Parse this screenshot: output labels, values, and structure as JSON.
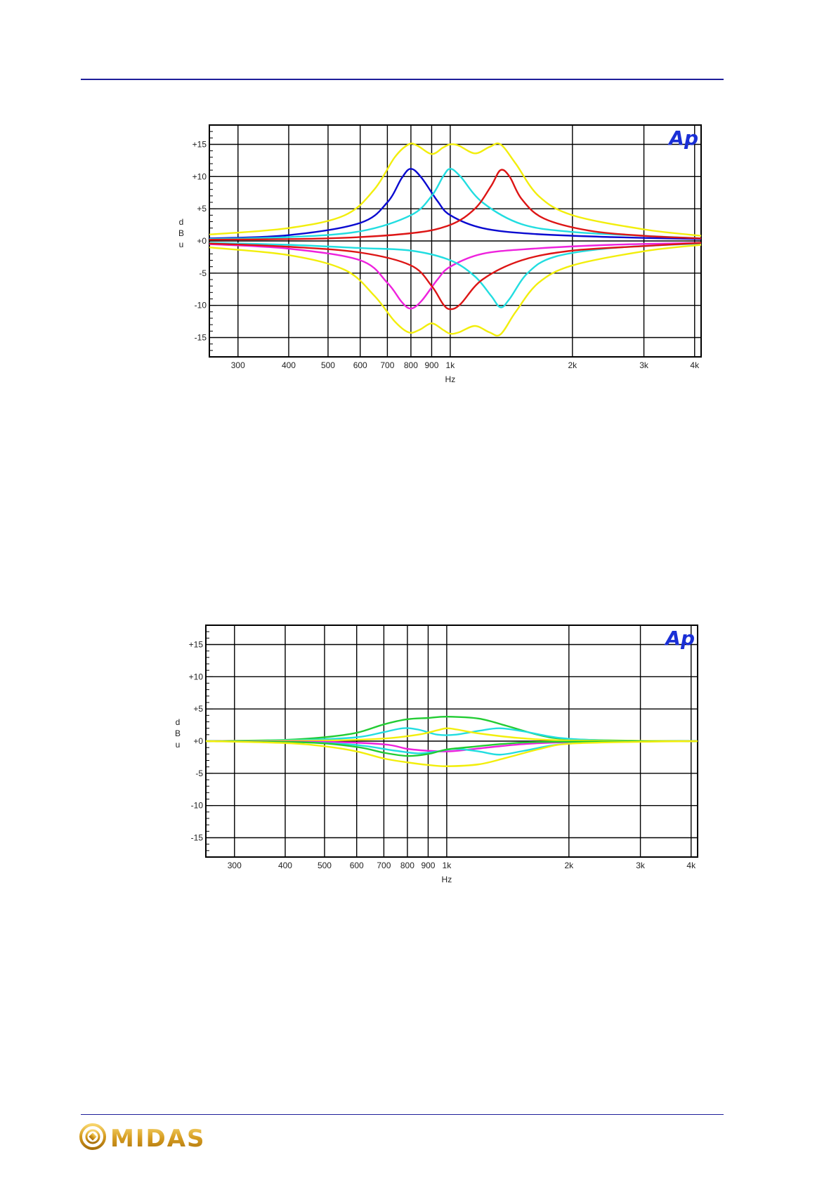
{
  "page": {
    "logo_text": "MIDAS"
  },
  "chart_data": [
    {
      "type": "line",
      "title": "",
      "xlabel": "Hz",
      "ylabel": "dBu",
      "x_scale": "log",
      "xlim": [
        255,
        4150
      ],
      "ylim": [
        -18,
        18
      ],
      "x_ticks": [
        {
          "value": 300,
          "label": "300"
        },
        {
          "value": 400,
          "label": "400"
        },
        {
          "value": 500,
          "label": "500"
        },
        {
          "value": 600,
          "label": "600"
        },
        {
          "value": 700,
          "label": "700"
        },
        {
          "value": 800,
          "label": "800"
        },
        {
          "value": 900,
          "label": "900"
        },
        {
          "value": 1000,
          "label": "1k"
        },
        {
          "value": 2000,
          "label": "2k"
        },
        {
          "value": 3000,
          "label": "3k"
        },
        {
          "value": 4000,
          "label": "4k"
        }
      ],
      "y_ticks": [
        {
          "value": 15,
          "label": "+15"
        },
        {
          "value": 10,
          "label": "+10"
        },
        {
          "value": 5,
          "label": "+5"
        },
        {
          "value": 0,
          "label": "+0"
        },
        {
          "value": -5,
          "label": "-5"
        },
        {
          "value": -10,
          "label": "-10"
        },
        {
          "value": -15,
          "label": "-15"
        }
      ],
      "grid": true,
      "badge": "Ap",
      "colors": {
        "badge": "#1a2fd6",
        "grid": "#000000"
      },
      "series": [
        {
          "color": "#0a0ad0",
          "points": [
            [
              255,
              0.4
            ],
            [
              400,
              0.9
            ],
            [
              600,
              2.8
            ],
            [
              700,
              6.0
            ],
            [
              760,
              9.8
            ],
            [
              800,
              11.2
            ],
            [
              850,
              9.8
            ],
            [
              930,
              6.2
            ],
            [
              1000,
              4.0
            ],
            [
              1200,
              2.0
            ],
            [
              1600,
              1.1
            ],
            [
              2500,
              0.6
            ],
            [
              4150,
              0.3
            ]
          ]
        },
        {
          "color": "#22dde0",
          "points": [
            [
              255,
              0.3
            ],
            [
              400,
              0.6
            ],
            [
              600,
              1.5
            ],
            [
              800,
              4.0
            ],
            [
              900,
              7.0
            ],
            [
              960,
              10.0
            ],
            [
              1000,
              11.2
            ],
            [
              1060,
              10.0
            ],
            [
              1200,
              6.0
            ],
            [
              1500,
              2.6
            ],
            [
              2000,
              1.4
            ],
            [
              3000,
              0.8
            ],
            [
              4150,
              0.4
            ]
          ]
        },
        {
          "color": "#dd1515",
          "points": [
            [
              255,
              0.2
            ],
            [
              500,
              0.4
            ],
            [
              800,
              1.2
            ],
            [
              1000,
              2.5
            ],
            [
              1150,
              5.0
            ],
            [
              1260,
              8.5
            ],
            [
              1330,
              11.0
            ],
            [
              1400,
              10.0
            ],
            [
              1500,
              6.5
            ],
            [
              1700,
              3.5
            ],
            [
              2200,
              1.6
            ],
            [
              3000,
              0.8
            ],
            [
              4150,
              0.4
            ]
          ]
        },
        {
          "color": "#f2ee0c",
          "points": [
            [
              255,
              1.0
            ],
            [
              400,
              2.0
            ],
            [
              550,
              4.0
            ],
            [
              650,
              8.0
            ],
            [
              730,
              13.0
            ],
            [
              790,
              15.0
            ],
            [
              830,
              14.8
            ],
            [
              900,
              13.5
            ],
            [
              960,
              14.5
            ],
            [
              1000,
              15.0
            ],
            [
              1050,
              14.8
            ],
            [
              1150,
              13.6
            ],
            [
              1250,
              14.6
            ],
            [
              1330,
              15.0
            ],
            [
              1450,
              12.0
            ],
            [
              1650,
              7.0
            ],
            [
              2000,
              4.0
            ],
            [
              3000,
              1.8
            ],
            [
              4150,
              0.8
            ]
          ]
        },
        {
          "color": "#ee22dd",
          "points": [
            [
              255,
              -0.5
            ],
            [
              400,
              -1.2
            ],
            [
              600,
              -3.0
            ],
            [
              700,
              -6.5
            ],
            [
              760,
              -9.5
            ],
            [
              800,
              -10.5
            ],
            [
              850,
              -9.3
            ],
            [
              930,
              -6.0
            ],
            [
              1000,
              -4.0
            ],
            [
              1200,
              -2.0
            ],
            [
              1600,
              -1.2
            ],
            [
              2500,
              -0.6
            ],
            [
              4150,
              -0.3
            ]
          ]
        },
        {
          "color": "#22dde0",
          "points": [
            [
              255,
              -0.3
            ],
            [
              400,
              -0.6
            ],
            [
              600,
              -1.1
            ],
            [
              800,
              -1.5
            ],
            [
              1000,
              -3.0
            ],
            [
              1150,
              -5.5
            ],
            [
              1260,
              -8.5
            ],
            [
              1330,
              -10.3
            ],
            [
              1400,
              -9.0
            ],
            [
              1550,
              -5.0
            ],
            [
              1800,
              -2.5
            ],
            [
              2500,
              -1.1
            ],
            [
              4150,
              -0.4
            ]
          ]
        },
        {
          "color": "#dd1515",
          "points": [
            [
              255,
              -0.4
            ],
            [
              400,
              -0.9
            ],
            [
              600,
              -1.8
            ],
            [
              800,
              -3.8
            ],
            [
              900,
              -7.0
            ],
            [
              960,
              -9.8
            ],
            [
              1000,
              -10.6
            ],
            [
              1060,
              -9.8
            ],
            [
              1200,
              -6.0
            ],
            [
              1500,
              -3.0
            ],
            [
              2000,
              -1.5
            ],
            [
              3000,
              -0.8
            ],
            [
              4150,
              -0.3
            ]
          ]
        },
        {
          "color": "#f2ee0c",
          "points": [
            [
              255,
              -1.0
            ],
            [
              400,
              -2.2
            ],
            [
              550,
              -4.5
            ],
            [
              650,
              -8.5
            ],
            [
              730,
              -12.5
            ],
            [
              790,
              -14.2
            ],
            [
              840,
              -13.8
            ],
            [
              900,
              -12.8
            ],
            [
              960,
              -13.8
            ],
            [
              1000,
              -14.4
            ],
            [
              1050,
              -14.2
            ],
            [
              1150,
              -13.2
            ],
            [
              1250,
              -14.2
            ],
            [
              1330,
              -14.5
            ],
            [
              1450,
              -11.0
            ],
            [
              1650,
              -6.5
            ],
            [
              2000,
              -3.8
            ],
            [
              3000,
              -1.6
            ],
            [
              4150,
              -0.6
            ]
          ]
        }
      ]
    },
    {
      "type": "line",
      "title": "",
      "xlabel": "Hz",
      "ylabel": "dBu",
      "x_scale": "log",
      "xlim": [
        255,
        4150
      ],
      "ylim": [
        -18,
        18
      ],
      "x_ticks": [
        {
          "value": 300,
          "label": "300"
        },
        {
          "value": 400,
          "label": "400"
        },
        {
          "value": 500,
          "label": "500"
        },
        {
          "value": 600,
          "label": "600"
        },
        {
          "value": 700,
          "label": "700"
        },
        {
          "value": 800,
          "label": "800"
        },
        {
          "value": 900,
          "label": "900"
        },
        {
          "value": 1000,
          "label": "1k"
        },
        {
          "value": 2000,
          "label": "2k"
        },
        {
          "value": 3000,
          "label": "3k"
        },
        {
          "value": 4000,
          "label": "4k"
        }
      ],
      "y_ticks": [
        {
          "value": 15,
          "label": "+15"
        },
        {
          "value": 10,
          "label": "+10"
        },
        {
          "value": 5,
          "label": "+5"
        },
        {
          "value": 0,
          "label": "+0"
        },
        {
          "value": -5,
          "label": "-5"
        },
        {
          "value": -10,
          "label": "-10"
        },
        {
          "value": -15,
          "label": "-15"
        }
      ],
      "grid": true,
      "badge": "Ap",
      "colors": {
        "badge": "#1a2fd6",
        "grid": "#000000"
      },
      "series": [
        {
          "color": "#22cc33",
          "points": [
            [
              255,
              0.0
            ],
            [
              400,
              0.2
            ],
            [
              500,
              0.6
            ],
            [
              600,
              1.3
            ],
            [
              700,
              2.6
            ],
            [
              800,
              3.4
            ],
            [
              900,
              3.6
            ],
            [
              1000,
              3.8
            ],
            [
              1200,
              3.5
            ],
            [
              1400,
              2.4
            ],
            [
              1700,
              0.9
            ],
            [
              2000,
              0.3
            ],
            [
              3000,
              0.05
            ],
            [
              4150,
              0.0
            ]
          ]
        },
        {
          "color": "#22dde0",
          "points": [
            [
              255,
              0.0
            ],
            [
              450,
              0.2
            ],
            [
              600,
              0.6
            ],
            [
              700,
              1.4
            ],
            [
              780,
              2.0
            ],
            [
              850,
              1.8
            ],
            [
              950,
              1.0
            ],
            [
              1050,
              1.0
            ],
            [
              1200,
              1.6
            ],
            [
              1350,
              2.0
            ],
            [
              1550,
              1.5
            ],
            [
              1900,
              0.5
            ],
            [
              2500,
              0.1
            ],
            [
              4150,
              0.0
            ]
          ]
        },
        {
          "color": "#f2ee0c",
          "points": [
            [
              255,
              0.0
            ],
            [
              500,
              0.1
            ],
            [
              700,
              0.4
            ],
            [
              850,
              1.0
            ],
            [
              950,
              1.7
            ],
            [
              1000,
              2.0
            ],
            [
              1060,
              1.8
            ],
            [
              1200,
              1.2
            ],
            [
              1500,
              0.5
            ],
            [
              2000,
              0.1
            ],
            [
              4150,
              0.0
            ]
          ]
        },
        {
          "color": "#ee22dd",
          "points": [
            [
              255,
              0.0
            ],
            [
              500,
              -0.1
            ],
            [
              700,
              -0.5
            ],
            [
              800,
              -1.2
            ],
            [
              900,
              -1.5
            ],
            [
              1000,
              -1.6
            ],
            [
              1100,
              -1.4
            ],
            [
              1300,
              -0.9
            ],
            [
              1600,
              -0.4
            ],
            [
              2200,
              -0.1
            ],
            [
              4150,
              0.0
            ]
          ]
        },
        {
          "color": "#22dde0",
          "points": [
            [
              255,
              0.0
            ],
            [
              450,
              -0.2
            ],
            [
              600,
              -0.6
            ],
            [
              750,
              -1.5
            ],
            [
              850,
              -1.9
            ],
            [
              950,
              -1.6
            ],
            [
              1050,
              -1.2
            ],
            [
              1200,
              -1.6
            ],
            [
              1350,
              -2.1
            ],
            [
              1550,
              -1.5
            ],
            [
              1900,
              -0.5
            ],
            [
              2500,
              -0.1
            ],
            [
              4150,
              0.0
            ]
          ]
        },
        {
          "color": "#22cc33",
          "points": [
            [
              255,
              0.0
            ],
            [
              450,
              -0.2
            ],
            [
              600,
              -0.9
            ],
            [
              700,
              -1.8
            ],
            [
              800,
              -2.3
            ],
            [
              900,
              -2.0
            ],
            [
              1000,
              -1.3
            ],
            [
              1150,
              -0.9
            ],
            [
              1400,
              -0.4
            ],
            [
              1800,
              -0.1
            ],
            [
              4150,
              0.0
            ]
          ]
        },
        {
          "color": "#f2ee0c",
          "points": [
            [
              255,
              0.0
            ],
            [
              400,
              -0.3
            ],
            [
              500,
              -0.8
            ],
            [
              600,
              -1.6
            ],
            [
              700,
              -2.7
            ],
            [
              800,
              -3.3
            ],
            [
              900,
              -3.7
            ],
            [
              1000,
              -3.9
            ],
            [
              1200,
              -3.6
            ],
            [
              1400,
              -2.6
            ],
            [
              1700,
              -1.2
            ],
            [
              2000,
              -0.4
            ],
            [
              3000,
              -0.1
            ],
            [
              4150,
              0.0
            ]
          ]
        }
      ]
    }
  ]
}
